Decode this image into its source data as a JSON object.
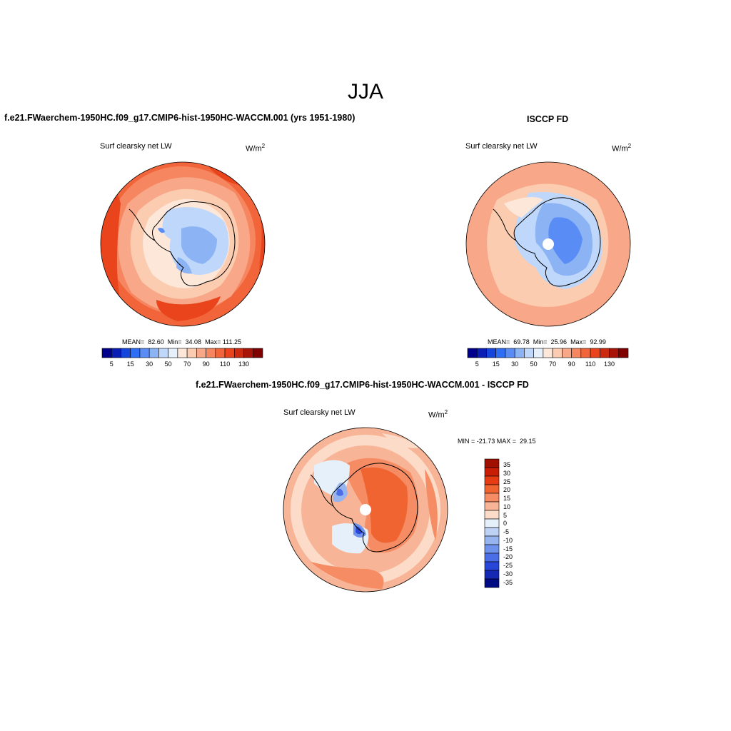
{
  "title": "JJA",
  "panels": [
    {
      "case_title": "f.e21.FWaerchem-1950HC.f09_g17.CMIP6-hist-1950HC-WACCM.001 (yrs 1951-1980)",
      "variable": "Surf clearsky net LW",
      "units": "W/m",
      "units_sup": "2",
      "stats": "MEAN=  82.60  Min=  34.08  Max= 111.25"
    },
    {
      "case_title": "ISCCP FD",
      "variable": "Surf clearsky net LW",
      "units": "W/m",
      "units_sup": "2",
      "stats": "MEAN=  69.78  Min=  25.96  Max=  92.99"
    },
    {
      "case_title": "f.e21.FWaerchem-1950HC.f09_g17.CMIP6-hist-1950HC-WACCM.001 - ISCCP FD",
      "variable": "Surf clearsky net LW",
      "units": "W/m",
      "units_sup": "2",
      "stats": "MIN = -21.73 MAX =  29.15"
    }
  ],
  "abs_colorbar": {
    "colors": [
      "#00008c",
      "#0a1eb4",
      "#1446dc",
      "#2d6ef5",
      "#5a8cf5",
      "#8cb4f5",
      "#bed7fa",
      "#e6f0fa",
      "#fde7d8",
      "#fbccb0",
      "#f8a888",
      "#f68660",
      "#f2643a",
      "#e9441c",
      "#cc2a0f",
      "#a81508",
      "#800000"
    ],
    "labels": [
      "5",
      "15",
      "30",
      "50",
      "70",
      "90",
      "110",
      "130"
    ]
  },
  "diff_colorbar": {
    "colors": [
      "#a01000",
      "#c81e05",
      "#e63c14",
      "#f06432",
      "#f58c64",
      "#f8b496",
      "#fcdcc8",
      "#e6f0fa",
      "#bed2f5",
      "#96b4f0",
      "#6e91eb",
      "#4b6ee6",
      "#2846d7",
      "#1428b4",
      "#000a82"
    ],
    "labels": [
      "35",
      "30",
      "25",
      "20",
      "15",
      "10",
      "5",
      "0",
      "-5",
      "-10",
      "-15",
      "-20",
      "-25",
      "-30",
      "-35"
    ]
  }
}
